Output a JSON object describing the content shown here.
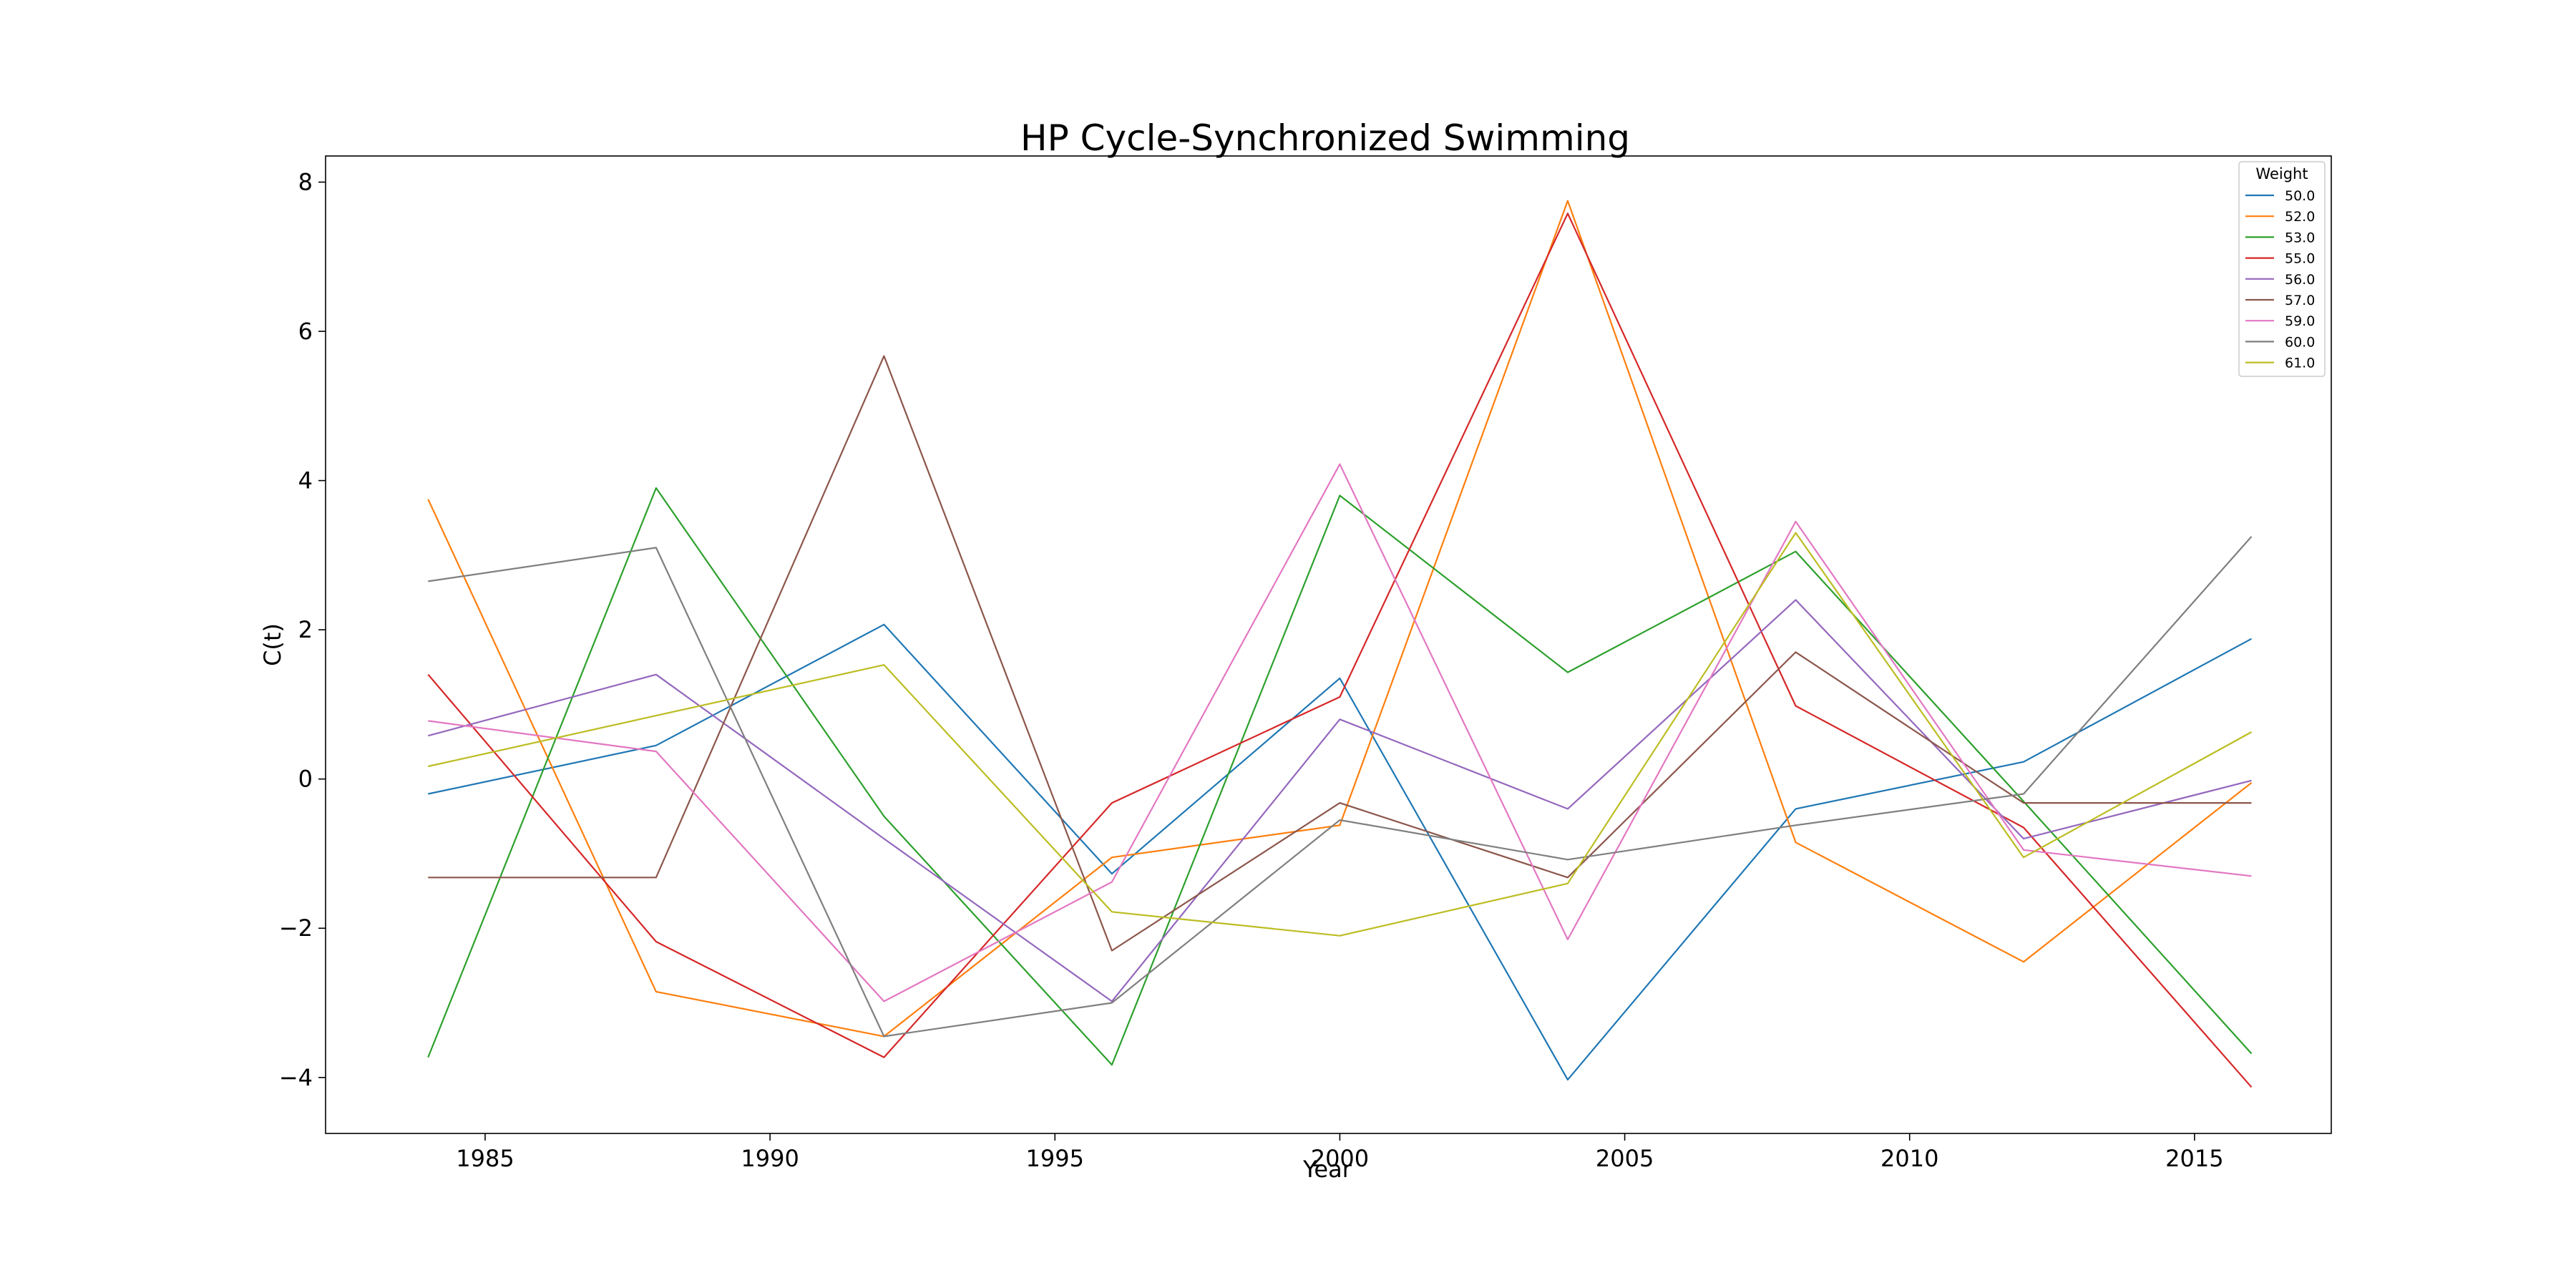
{
  "chart_data": {
    "type": "line",
    "title": "HP Cycle-Synchronized Swimming",
    "xlabel": "Year",
    "ylabel": "C(t)",
    "xlim": [
      1982.2,
      2017.4
    ],
    "ylim": [
      -4.75,
      8.35
    ],
    "xticks": [
      1985,
      1990,
      1995,
      2000,
      2005,
      2010,
      2015
    ],
    "yticks": [
      -4,
      -2,
      0,
      2,
      4,
      6,
      8
    ],
    "grid": false,
    "legend": {
      "title": "Weight",
      "placement": "top-right"
    },
    "x": [
      1984,
      1988,
      1992,
      1996,
      2000,
      2004,
      2008,
      2012,
      2016
    ],
    "series": [
      {
        "name": "50.0",
        "color": "#1f77b4",
        "values": [
          -0.2,
          0.45,
          2.07,
          -1.27,
          1.35,
          -4.03,
          -0.4,
          0.23,
          1.88
        ]
      },
      {
        "name": "52.0",
        "color": "#ff7f0e",
        "values": [
          3.75,
          -2.85,
          -3.45,
          -1.05,
          -0.62,
          7.75,
          -0.85,
          -2.45,
          -0.05
        ]
      },
      {
        "name": "53.0",
        "color": "#2ca02c",
        "values": [
          -3.73,
          3.9,
          -0.5,
          -3.83,
          3.8,
          1.43,
          3.05,
          -0.3,
          -3.68
        ]
      },
      {
        "name": "55.0",
        "color": "#d62728",
        "values": [
          1.4,
          -2.18,
          -3.73,
          -0.32,
          1.1,
          7.58,
          0.98,
          -0.65,
          -4.13
        ]
      },
      {
        "name": "56.0",
        "color": "#9467bd",
        "values": [
          0.58,
          1.4,
          -0.8,
          -2.98,
          0.8,
          -0.4,
          2.4,
          -0.8,
          -0.02
        ]
      },
      {
        "name": "57.0",
        "color": "#8c564b",
        "values": [
          -1.32,
          -1.32,
          5.67,
          -2.3,
          -0.32,
          -1.32,
          1.7,
          -0.32,
          -0.32
        ]
      },
      {
        "name": "59.0",
        "color": "#e377c2",
        "values": [
          0.78,
          0.37,
          -2.98,
          -1.38,
          4.22,
          -2.15,
          3.45,
          -0.95,
          -1.3
        ]
      },
      {
        "name": "60.0",
        "color": "#7f7f7f",
        "values": [
          2.65,
          3.1,
          -3.45,
          -3.0,
          -0.55,
          -1.08,
          -0.62,
          -0.2,
          3.25
        ]
      },
      {
        "name": "61.0",
        "color": "#bcbd22",
        "values": [
          0.17,
          0.85,
          1.53,
          -1.78,
          -2.1,
          -1.4,
          3.3,
          -1.05,
          0.63
        ]
      }
    ]
  }
}
